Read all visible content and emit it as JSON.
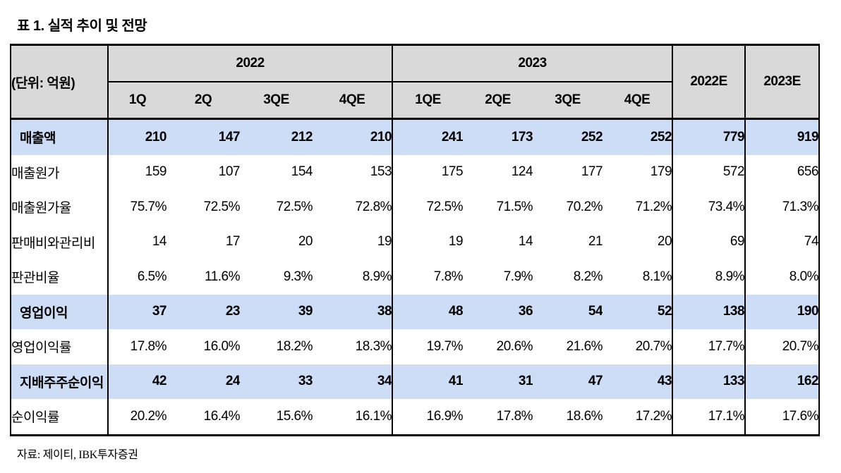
{
  "title": "표 1. 실적 추이 및 전망",
  "table": {
    "unit_label": "(단위: 억원)",
    "col_groups": [
      {
        "label": "2022",
        "cols": [
          "1Q",
          "2Q",
          "3QE",
          "4QE"
        ]
      },
      {
        "label": "2023",
        "cols": [
          "1QE",
          "2QE",
          "3QE",
          "4QE"
        ]
      }
    ],
    "annual_cols": [
      "2022E",
      "2023E"
    ],
    "rows": [
      {
        "label": "매출액",
        "highlight": true,
        "values": [
          "210",
          "147",
          "212",
          "210",
          "241",
          "173",
          "252",
          "252",
          "779",
          "919"
        ]
      },
      {
        "label": "매출원가",
        "highlight": false,
        "values": [
          "159",
          "107",
          "154",
          "153",
          "175",
          "124",
          "177",
          "179",
          "572",
          "656"
        ]
      },
      {
        "label": "매출원가율",
        "highlight": false,
        "values": [
          "75.7%",
          "72.5%",
          "72.5%",
          "72.8%",
          "72.5%",
          "71.5%",
          "70.2%",
          "71.2%",
          "73.4%",
          "71.3%"
        ]
      },
      {
        "label": "판매비와관리비",
        "highlight": false,
        "values": [
          "14",
          "17",
          "20",
          "19",
          "19",
          "14",
          "21",
          "20",
          "69",
          "74"
        ]
      },
      {
        "label": "판관비율",
        "highlight": false,
        "values": [
          "6.5%",
          "11.6%",
          "9.3%",
          "8.9%",
          "7.8%",
          "7.9%",
          "8.2%",
          "8.1%",
          "8.9%",
          "8.0%"
        ]
      },
      {
        "label": "영업이익",
        "highlight": true,
        "values": [
          "37",
          "23",
          "39",
          "38",
          "48",
          "36",
          "54",
          "52",
          "138",
          "190"
        ]
      },
      {
        "label": "영업이익률",
        "highlight": false,
        "values": [
          "17.8%",
          "16.0%",
          "18.2%",
          "18.3%",
          "19.7%",
          "20.6%",
          "21.6%",
          "20.7%",
          "17.7%",
          "20.7%"
        ]
      },
      {
        "label": "지배주주순이익",
        "highlight": true,
        "values": [
          "42",
          "24",
          "33",
          "34",
          "41",
          "31",
          "47",
          "43",
          "133",
          "162"
        ]
      },
      {
        "label": "순이익률",
        "highlight": false,
        "values": [
          "20.2%",
          "16.4%",
          "15.6%",
          "16.1%",
          "16.9%",
          "17.8%",
          "18.6%",
          "17.2%",
          "17.1%",
          "17.6%"
        ]
      }
    ],
    "colors": {
      "header_bg": "#d9d9d9",
      "highlight_bg": "#cdddf6"
    }
  },
  "source": "자료: 제이티, IBK투자증권"
}
